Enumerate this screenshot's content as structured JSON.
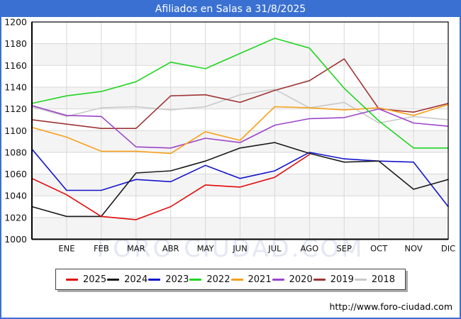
{
  "window": {
    "title": "Afiliados en Salas a 31/8/2025",
    "watermark": "FORO CIUDAD.COM",
    "url": "http://www.foro-ciudad.com"
  },
  "colors": {
    "titlebar": "#3a70d1",
    "frame_border": "#3a70d1",
    "grid": "#d8d8d8",
    "band": "#f4f4f4",
    "plot_border": "#000000",
    "watermark": "#e4e7f3"
  },
  "chart_data": {
    "type": "line",
    "title": "Afiliados en Salas a 31/8/2025",
    "xlabel": "",
    "ylabel": "",
    "y_min": 1000,
    "y_max": 1200,
    "y_step": 20,
    "grid": true,
    "legend_position": "bottom",
    "x_labels": [
      "",
      "ENE",
      "FEB",
      "MAR",
      "ABR",
      "MAY",
      "JUN",
      "JUL",
      "AGO",
      "SEP",
      "OCT",
      "NOV",
      "DIC"
    ],
    "series": [
      {
        "name": "2018",
        "color": "#c9c9c9",
        "values": [
          1122,
          1113,
          1121,
          1122,
          1119,
          1122,
          1133,
          1138,
          1121,
          1126,
          1107,
          1113,
          1110
        ]
      },
      {
        "name": "2019",
        "color": "#9e3434",
        "values": [
          1110,
          1106,
          1102,
          1102,
          1132,
          1133,
          1126,
          1137,
          1146,
          1166,
          1120,
          1117,
          1125
        ]
      },
      {
        "name": "2020",
        "color": "#9b45c9",
        "values": [
          1123,
          1114,
          1113,
          1085,
          1084,
          1093,
          1089,
          1105,
          1111,
          1112,
          1120,
          1107,
          1104
        ]
      },
      {
        "name": "2021",
        "color": "#f7a01b",
        "values": [
          1103,
          1094,
          1081,
          1081,
          1079,
          1099,
          1091,
          1122,
          1121,
          1119,
          1121,
          1114,
          1124
        ]
      },
      {
        "name": "2022",
        "color": "#21d421",
        "values": [
          1125,
          1132,
          1136,
          1145,
          1163,
          1157,
          1171,
          1185,
          1176,
          1139,
          1109,
          1084,
          1084
        ]
      },
      {
        "name": "2023",
        "color": "#1414cc",
        "values": [
          1083,
          1045,
          1045,
          1055,
          1053,
          1068,
          1056,
          1063,
          1080,
          1074,
          1072,
          1071,
          1030
        ]
      },
      {
        "name": "2024",
        "color": "#1a1a1a",
        "values": [
          1030,
          1021,
          1021,
          1061,
          1063,
          1072,
          1084,
          1089,
          1079,
          1071,
          1072,
          1046,
          1055
        ]
      },
      {
        "name": "2025",
        "color": "#e10a0a",
        "values": [
          1056,
          1041,
          1021,
          1018,
          1030,
          1050,
          1048,
          1057,
          1078,
          null,
          null,
          null,
          null
        ]
      }
    ]
  },
  "legend": {
    "items": [
      {
        "label": "2025",
        "color": "#e10a0a"
      },
      {
        "label": "2024",
        "color": "#1a1a1a"
      },
      {
        "label": "2023",
        "color": "#1414cc"
      },
      {
        "label": "2022",
        "color": "#21d421"
      },
      {
        "label": "2021",
        "color": "#f7a01b"
      },
      {
        "label": "2020",
        "color": "#9b45c9"
      },
      {
        "label": "2019",
        "color": "#9e3434"
      },
      {
        "label": "2018",
        "color": "#c9c9c9"
      }
    ]
  }
}
